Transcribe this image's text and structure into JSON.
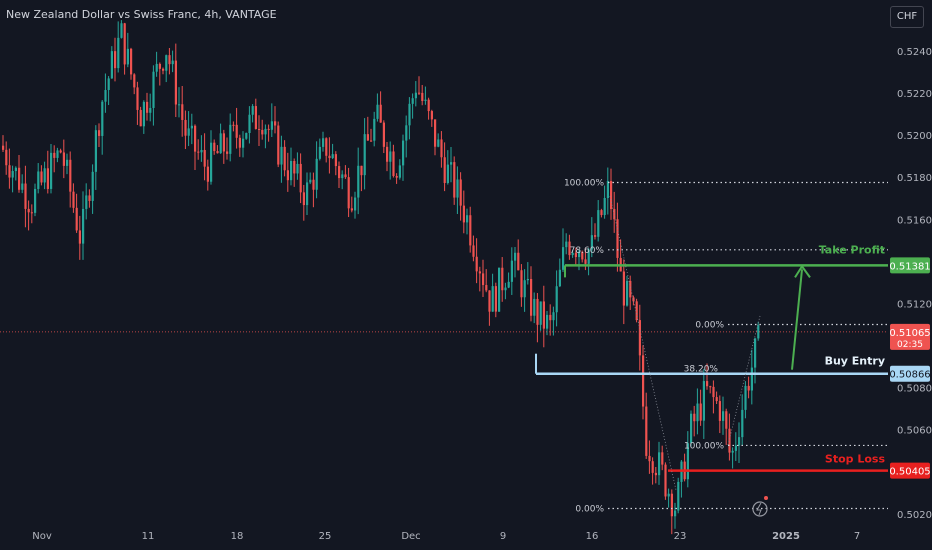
{
  "header": {
    "title": "New Zealand Dollar vs Swiss Franc, 4h, VANTAGE",
    "currency_button": "CHF"
  },
  "colors": {
    "background": "#131722",
    "bull": "#26a69a",
    "bear": "#ef5350",
    "take_profit": "#4caf50",
    "buy_entry": "#a9d7f5",
    "stop_loss": "#e8201f",
    "grid_text": "#b2b5be"
  },
  "chart_data": {
    "type": "candlestick",
    "title": "New Zealand Dollar vs Swiss Franc, 4h, VANTAGE",
    "ylim": [
      0.5018,
      0.525
    ],
    "y_ticks": [
      "0.52400",
      "0.52200",
      "0.52000",
      "0.51800",
      "0.51600",
      "0.51200",
      "0.50800",
      "0.50600",
      "0.50200"
    ],
    "x_ticks": [
      "Nov",
      "11",
      "18",
      "25",
      "Dec",
      "9",
      "16",
      "23",
      "2025",
      "7"
    ],
    "price_path": [
      [
        0,
        0.5195
      ],
      [
        30,
        0.5168
      ],
      [
        60,
        0.5193
      ],
      [
        80,
        0.515
      ],
      [
        100,
        0.5215
      ],
      [
        120,
        0.5248
      ],
      [
        140,
        0.521
      ],
      [
        165,
        0.5242
      ],
      [
        185,
        0.52
      ],
      [
        205,
        0.5185
      ],
      [
        230,
        0.5198
      ],
      [
        260,
        0.521
      ],
      [
        285,
        0.5186
      ],
      [
        305,
        0.5172
      ],
      [
        325,
        0.5195
      ],
      [
        350,
        0.5172
      ],
      [
        375,
        0.5208
      ],
      [
        395,
        0.5185
      ],
      [
        415,
        0.5225
      ],
      [
        440,
        0.519
      ],
      [
        465,
        0.5162
      ],
      [
        490,
        0.512
      ],
      [
        510,
        0.514
      ],
      [
        535,
        0.5115
      ],
      [
        550,
        0.5108
      ],
      [
        565,
        0.515
      ],
      [
        590,
        0.5145
      ],
      [
        608,
        0.5175
      ],
      [
        620,
        0.513
      ],
      [
        635,
        0.511
      ],
      [
        645,
        0.5055
      ],
      [
        660,
        0.504
      ],
      [
        675,
        0.5023
      ],
      [
        690,
        0.506
      ],
      [
        705,
        0.5078
      ],
      [
        720,
        0.507
      ],
      [
        730,
        0.5045
      ],
      [
        745,
        0.508
      ],
      [
        760,
        0.5106
      ]
    ],
    "levels": {
      "take_profit": {
        "label": "Take Profit",
        "value": "0.51381",
        "price": 0.51381
      },
      "buy_entry": {
        "label": "Buy Entry",
        "value": "0.50866",
        "price": 0.50866
      },
      "stop_loss": {
        "label": "Stop Loss",
        "value": "0.50405",
        "price": 0.50405
      },
      "current": {
        "value": "0.51065",
        "countdown": "02:35",
        "price": 0.51065
      }
    },
    "fib_upper": [
      {
        "label": "100.00%",
        "price": 0.51775
      },
      {
        "label": "78.60%",
        "price": 0.51455
      },
      {
        "label": "0.00%",
        "price": 0.511
      }
    ],
    "fib_lower": [
      {
        "label": "38.20%",
        "price": 0.50866
      },
      {
        "label": "100.00%",
        "price": 0.50525
      },
      {
        "label": "0.00%",
        "price": 0.50225
      }
    ]
  }
}
